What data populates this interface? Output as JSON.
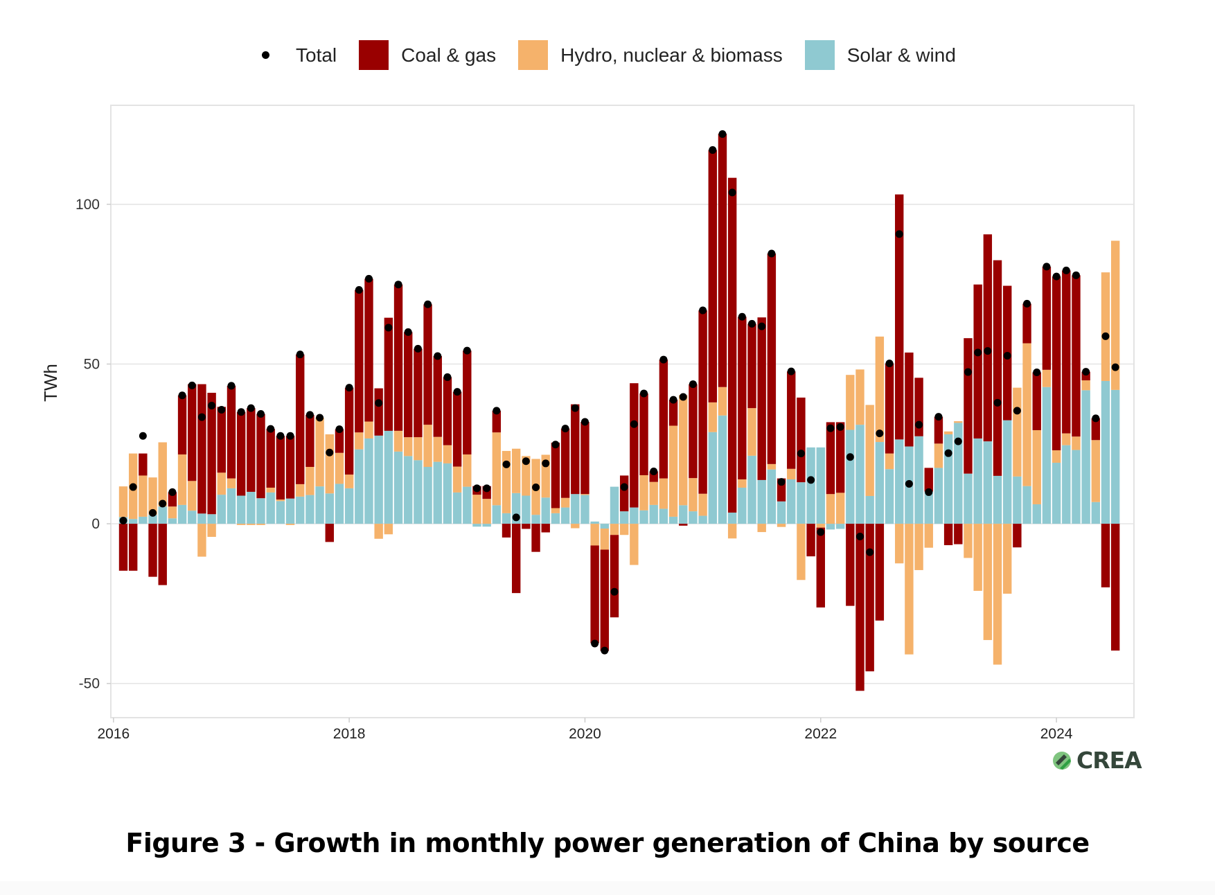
{
  "caption": "Figure 3 - Growth in monthly power generation of China by source",
  "logo_text": "CREA",
  "chart_data": {
    "type": "bar",
    "stacked": true,
    "title": "",
    "xlabel": "",
    "ylabel": "TWh",
    "ylim": [
      -60.7,
      131
    ],
    "yticks": [
      -50,
      0,
      50,
      100
    ],
    "xticks": [
      "2016",
      "2018",
      "2020",
      "2022",
      "2024"
    ],
    "grid": "horizontal",
    "legend_position": "top",
    "legend": {
      "total": "Total",
      "coal": "Coal & gas",
      "hydro": "Hydro, nuclear & biomass",
      "solar": "Solar & wind"
    },
    "colors": {
      "coal": "#990000",
      "hydro": "#F5B26B",
      "solar": "#8FC9D1",
      "total": "#000000"
    },
    "start_month": "2016-01",
    "end_month": "2024-06",
    "series": [
      {
        "name": "Solar & wind",
        "key": "solar",
        "values": [
          2.1,
          1.5,
          2.2,
          2.8,
          5.4,
          1.7,
          5.9,
          4.1,
          3.2,
          3.0,
          9.1,
          11.1,
          8.8,
          10,
          8,
          9.8,
          7.1,
          7.9,
          8.5,
          9,
          11.7,
          9.5,
          12.5,
          11.1,
          23.3,
          26.7,
          27.6,
          29.1,
          22.6,
          21.2,
          19.9,
          17.8,
          19.4,
          18.9,
          9.8,
          11.6,
          -0.9,
          -0.9,
          5.8,
          3.3,
          9.6,
          8.8,
          2.8,
          8.2,
          3.3,
          5.1,
          9.3,
          9,
          0.7,
          -1.5,
          11.6,
          3.9,
          5.1,
          4.2,
          5.9,
          4.7,
          2.2,
          5.8,
          3.9,
          2.5,
          28.7,
          33.9,
          3.5,
          11.3,
          21.3,
          13.7,
          17,
          7,
          13.9,
          13,
          23.9,
          23.9,
          -1.8,
          -1.6,
          29.4,
          31,
          8.7,
          25.6,
          17.1,
          26.4,
          24.2,
          27.4,
          10.1,
          17.5,
          28,
          31.6,
          15.7,
          26.7,
          25.8,
          15,
          32.4,
          14.8,
          11.8,
          6.1,
          42.8,
          19.1,
          24.6,
          23.1,
          41.8,
          6.8,
          44.7,
          41.9
        ]
      },
      {
        "name": "Hydro, nuclear & biomass",
        "key": "hydro",
        "values": [
          9.6,
          20.5,
          12.9,
          11.7,
          20.1,
          3.7,
          15.8,
          9.3,
          -10.3,
          -4.1,
          6.9,
          3.1,
          -0.4,
          -0.4,
          -0.4,
          1.5,
          0.5,
          -0.4,
          3.9,
          8.8,
          21.5,
          18.5,
          9.7,
          4.3,
          5.3,
          5.3,
          -4.7,
          -3.3,
          6.5,
          5.9,
          7.2,
          13.2,
          7.8,
          5.7,
          8.1,
          10.1,
          9.1,
          7.8,
          22.8,
          19.5,
          13.9,
          12.4,
          17.5,
          13.4,
          1.6,
          3,
          -1.4,
          0.3,
          -6.8,
          -6.6,
          -3.5,
          -3.5,
          -12.9,
          11,
          7.2,
          9.5,
          28.5,
          34.5,
          10.4,
          6.9,
          9.3,
          8.9,
          -4.6,
          2.6,
          14.9,
          -2.6,
          1.7,
          -1,
          3.3,
          -17.6,
          0,
          -1.2,
          9.3,
          9.7,
          17.2,
          17.3,
          28.5,
          33,
          4.9,
          -12.4,
          -40.9,
          -14.5,
          -7.5,
          7.6,
          0.9,
          0.5,
          -10.7,
          -21,
          -36.4,
          -44.1,
          -21.9,
          27.8,
          44.7,
          23.2,
          5.4,
          3.9,
          3.7,
          4.2,
          3.1,
          19.4,
          34,
          46.7
        ]
      },
      {
        "name": "Coal & gas",
        "key": "coal",
        "values": [
          -14.7,
          -14.7,
          6.9,
          -16.6,
          -19.2,
          4.5,
          18.5,
          30.3,
          40.5,
          38,
          20.6,
          29,
          26.2,
          26.2,
          26.4,
          18.4,
          19.9,
          19.6,
          40.6,
          16.3,
          0,
          -5.7,
          7.4,
          27.2,
          44.6,
          44.7,
          14.8,
          35.4,
          45.8,
          32.9,
          27.7,
          37.7,
          25.3,
          21.3,
          23.4,
          32.5,
          2.7,
          4,
          6.8,
          -4.3,
          -21.7,
          -1.6,
          -8.8,
          -2.7,
          20.5,
          21.7,
          28.1,
          22.6,
          -30.6,
          -31.7,
          -25.8,
          11.2,
          38.9,
          25.6,
          3.3,
          37.2,
          8.1,
          -0.6,
          29.4,
          57.4,
          79,
          79.3,
          104.8,
          50.9,
          26.4,
          50.9,
          65.9,
          7.2,
          30.5,
          26.5,
          -10.2,
          -25,
          22.5,
          22.1,
          -25.7,
          -52.3,
          -46.2,
          -30.3,
          28.2,
          76.7,
          29.4,
          18.3,
          7.4,
          8.4,
          -6.7,
          -6.4,
          42.4,
          48.2,
          64.8,
          67.5,
          42.1,
          -7.4,
          12.4,
          18.1,
          32.3,
          54.4,
          51,
          50.5,
          2.7,
          6.8,
          -19.9,
          -39.7
        ]
      },
      {
        "name": "Total",
        "key": "total",
        "values": [
          1.0,
          11.5,
          27.5,
          3.4,
          6.3,
          9.9,
          40.2,
          43.3,
          33.4,
          37,
          35.7,
          43.2,
          35,
          36.2,
          34.4,
          29.7,
          27.5,
          27.5,
          53,
          34.1,
          33.2,
          22.3,
          29.6,
          42.6,
          73.2,
          76.7,
          37.8,
          61.4,
          74.9,
          60,
          54.8,
          68.7,
          52.5,
          45.9,
          41.3,
          54.2,
          11.1,
          11.1,
          35.4,
          18.6,
          2,
          19.6,
          11.4,
          18.9,
          24.8,
          29.8,
          36.2,
          31.9,
          -37.5,
          -39.7,
          -21.3,
          11.5,
          31.2,
          40.8,
          16.4,
          51.4,
          38.8,
          39.7,
          43.7,
          66.8,
          117,
          122,
          103.7,
          64.8,
          62.6,
          61.8,
          84.6,
          13.1,
          47.7,
          22,
          13.7,
          -2.6,
          29.9,
          30.3,
          20.9,
          -4,
          -8.9,
          28.3,
          50.2,
          90.7,
          12.5,
          31,
          9.9,
          33.5,
          22.1,
          25.8,
          47.5,
          53.6,
          54.1,
          37.9,
          52.6,
          35.4,
          68.9,
          47.4,
          80.5,
          77.4,
          79.3,
          77.8,
          47.6,
          33,
          58.7,
          49
        ]
      }
    ]
  }
}
